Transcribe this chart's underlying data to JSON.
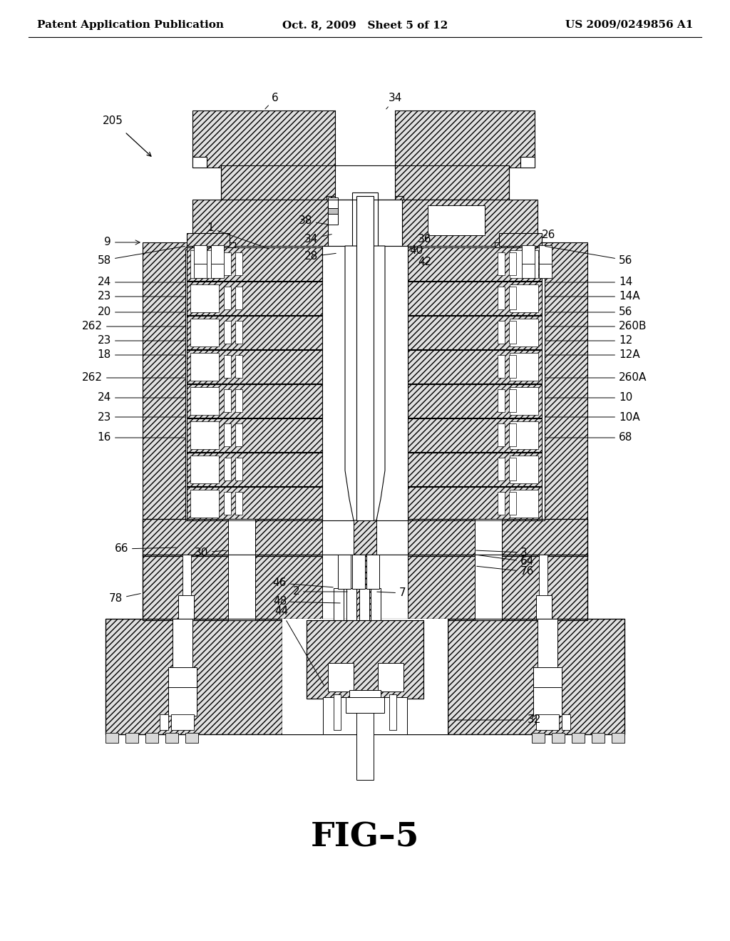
{
  "background_color": "#ffffff",
  "header_left": "Patent Application Publication",
  "header_center": "Oct. 8, 2009   Sheet 5 of 12",
  "header_right": "US 2009/0249856 A1",
  "figure_label": "FIG–5",
  "hatch_fc": "#e0e0e0",
  "hatch_pattern": "////",
  "lc": "#000000"
}
